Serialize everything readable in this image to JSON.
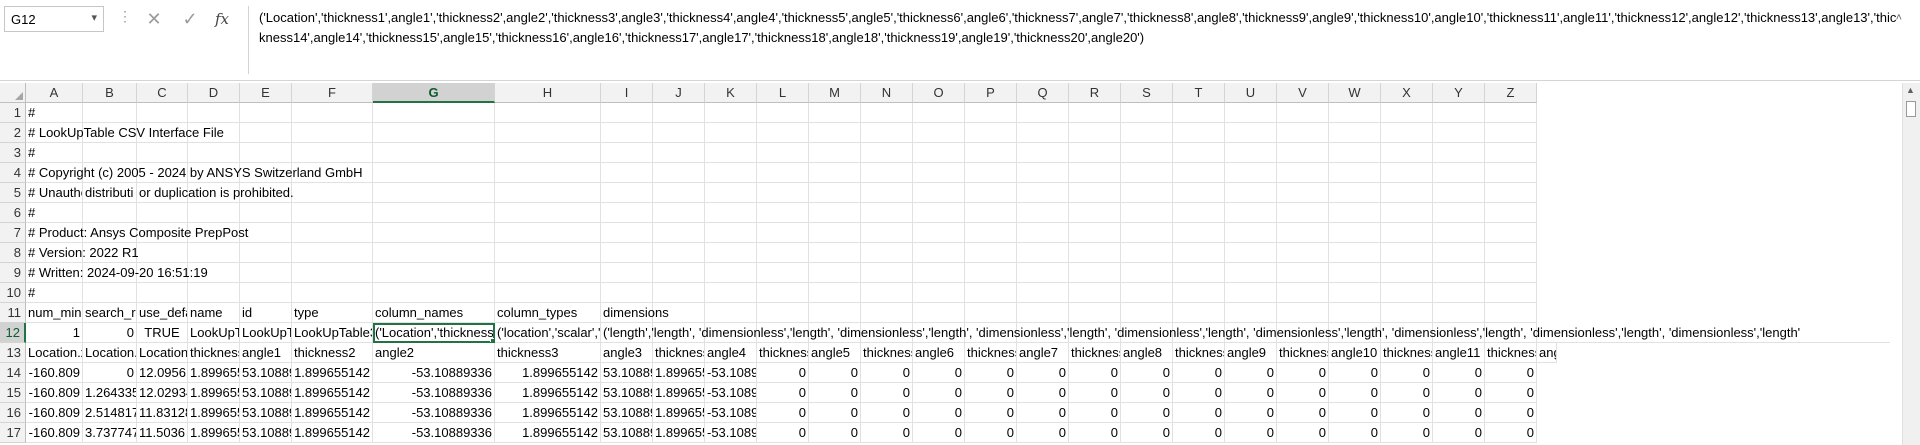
{
  "formula_bar": {
    "name_box": "G12",
    "formula": "('Location','thickness1',angle1','thickness2',angle2','thickness3',angle3','thickness4',angle4','thickness5',angle5','thickness6',angle6','thickness7',angle7','thickness8',angle8','thickness9',angle9','thickness10',angle10','thickness11',angle11','thickness12',angle12','thickness13',angle13','thickness14',angle14','thickness15',angle15','thickness16',angle16','thickness17',angle17','thickness18',angle18','thickness19',angle19','thickness20',angle20')"
  },
  "columns": [
    "A",
    "B",
    "C",
    "D",
    "E",
    "F",
    "G",
    "H",
    "I",
    "J",
    "K",
    "L",
    "M",
    "N",
    "O",
    "P",
    "Q",
    "R",
    "S",
    "T",
    "U",
    "V",
    "W",
    "X",
    "Y",
    "Z"
  ],
  "selected_column": "G",
  "rows": [
    1,
    2,
    3,
    4,
    5,
    6,
    7,
    8,
    9,
    10,
    11,
    12,
    13,
    14,
    15,
    16,
    17
  ],
  "selected_row": 12,
  "sheet": {
    "r1": [
      "#"
    ],
    "r2": [
      "# LookUpTable CSV Interface File"
    ],
    "r3": [
      "#"
    ],
    "r4": [
      "# Copyright (c) 2005 - 2024 by ANSYS Switzerland GmbH"
    ],
    "r5": [
      "# Unauthc",
      "distributi",
      "or duplication is prohibited."
    ],
    "r6": [
      "#"
    ],
    "r7": [
      "# Product: Ansys Composite PrepPost"
    ],
    "r8": [
      "# Version: 2022 R1"
    ],
    "r9": [
      "# Written: 2024-09-20 16:51:19"
    ],
    "r10": [
      "#"
    ],
    "r11": [
      "num_min",
      "search_ra",
      "use_defau",
      "name",
      "id",
      "type",
      "column_names",
      "column_types",
      "dimensions"
    ],
    "r12": [
      "1",
      "0",
      "TRUE",
      "LookUpTa",
      "LookUpTa",
      "LookUpTable3D",
      "('Location','thickness1',",
      "('location','scalar','sc",
      "('length','length', 'dimensionless','length', 'dimensionless','length', 'dimensionless','length', 'dimensionless','length', 'dimensionless','length', 'dimensionless','length', 'dimensionless','length', 'dimensionless','length'"
    ],
    "r13": [
      "Location.x",
      "Location.y",
      "Location.z",
      "thickness",
      "angle1",
      "thickness2",
      "angle2",
      "thickness3",
      "angle3",
      "thickness",
      "angle4",
      "thickness",
      "angle5",
      "thickness",
      "angle6",
      "thickness",
      "angle7",
      "thickness",
      "angle8",
      "thickness",
      "angle9",
      "thickness",
      "angle10",
      "thickness",
      "angle11",
      "thickness",
      "ang"
    ],
    "data_rows": [
      [
        "-160.809",
        "0",
        "12.0956",
        "1.899655",
        "53.10889",
        "1.899655142",
        "-53.10889336",
        "1.899655142",
        "53.10889",
        "1.899655",
        "-53.1089",
        "0",
        "0",
        "0",
        "0",
        "0",
        "0",
        "0",
        "0",
        "0",
        "0",
        "0",
        "0",
        "0",
        "0",
        "0"
      ],
      [
        "-160.809",
        "1.264335",
        "12.02934",
        "1.899655",
        "53.10889",
        "1.899655142",
        "-53.10889336",
        "1.899655142",
        "53.10889",
        "1.899655",
        "-53.1089",
        "0",
        "0",
        "0",
        "0",
        "0",
        "0",
        "0",
        "0",
        "0",
        "0",
        "0",
        "0",
        "0",
        "0",
        "0"
      ],
      [
        "-160.809",
        "2.514817",
        "11.83128",
        "1.899655",
        "53.10889",
        "1.899655142",
        "-53.10889336",
        "1.899655142",
        "53.10889",
        "1.899655",
        "-53.1089",
        "0",
        "0",
        "0",
        "0",
        "0",
        "0",
        "0",
        "0",
        "0",
        "0",
        "0",
        "0",
        "0",
        "0",
        "0"
      ],
      [
        "-160.809",
        "3.737747",
        "11.5036",
        "1.899655",
        "53.10889",
        "1.899655142",
        "-53.10889336",
        "1.899655142",
        "53.10889",
        "1.899655",
        "-53.1089",
        "0",
        "0",
        "0",
        "0",
        "0",
        "0",
        "0",
        "0",
        "0",
        "0",
        "0",
        "0",
        "0",
        "0",
        "0"
      ]
    ]
  },
  "icons": {
    "cancel": "close-icon",
    "enter": "check-icon",
    "function": "fx-icon"
  }
}
